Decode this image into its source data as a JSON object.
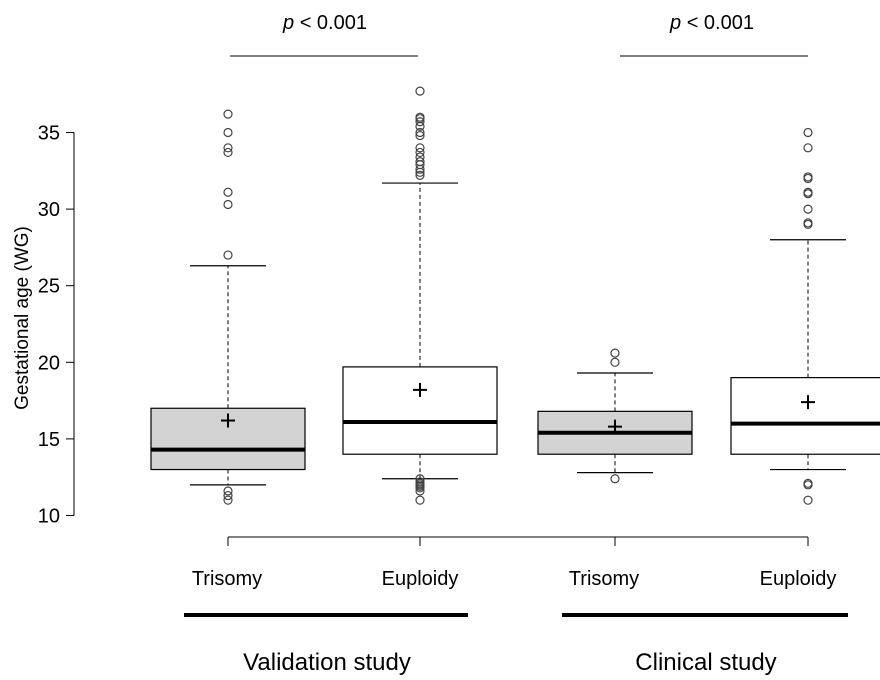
{
  "chart_data": {
    "type": "box",
    "ylabel": "Gestational age (WG)",
    "yticks": [
      10,
      15,
      20,
      25,
      30,
      35
    ],
    "groups": [
      {
        "label": "Trisomy",
        "study": "Validation study",
        "fill": "#d3d3d3",
        "q1": 13.0,
        "median": 14.3,
        "q3": 17.0,
        "whisker_low": 12.0,
        "whisker_high": 26.3,
        "mean": 16.2,
        "outliers": [
          11.0,
          11.3,
          11.6,
          27.0,
          30.3,
          31.1,
          33.7,
          34.0,
          35.0,
          36.2
        ]
      },
      {
        "label": "Euploidy",
        "study": "Validation study",
        "fill": "#ffffff",
        "q1": 14.0,
        "median": 16.1,
        "q3": 19.7,
        "whisker_low": 12.4,
        "whisker_high": 31.7,
        "mean": 18.2,
        "outliers": [
          11.0,
          11.6,
          11.8,
          11.9,
          12.0,
          12.1,
          12.2,
          12.4,
          32.2,
          32.4,
          32.6,
          32.9,
          33.1,
          33.4,
          33.7,
          34.0,
          34.8,
          35.0,
          35.4,
          35.7,
          35.9,
          36.0,
          37.7
        ]
      },
      {
        "label": "Trisomy",
        "study": "Clinical study",
        "fill": "#d3d3d3",
        "q1": 14.0,
        "median": 15.4,
        "q3": 16.8,
        "whisker_low": 12.8,
        "whisker_high": 19.3,
        "mean": 15.8,
        "outliers": [
          12.4,
          20.0,
          20.6
        ]
      },
      {
        "label": "Euploidy",
        "study": "Clinical study",
        "fill": "#ffffff",
        "q1": 14.0,
        "median": 16.0,
        "q3": 19.0,
        "whisker_low": 13.0,
        "whisker_high": 28.0,
        "mean": 17.4,
        "outliers": [
          11.0,
          12.0,
          12.1,
          29.0,
          29.1,
          30.0,
          31.0,
          31.1,
          32.0,
          32.1,
          34.0,
          35.0
        ]
      }
    ],
    "studies": [
      "Validation study",
      "Clinical study"
    ],
    "comparisons": [
      {
        "text_italic": "p",
        "text_rest": " < 0.001"
      },
      {
        "text_italic": "p",
        "text_rest": " < 0.001"
      }
    ]
  }
}
